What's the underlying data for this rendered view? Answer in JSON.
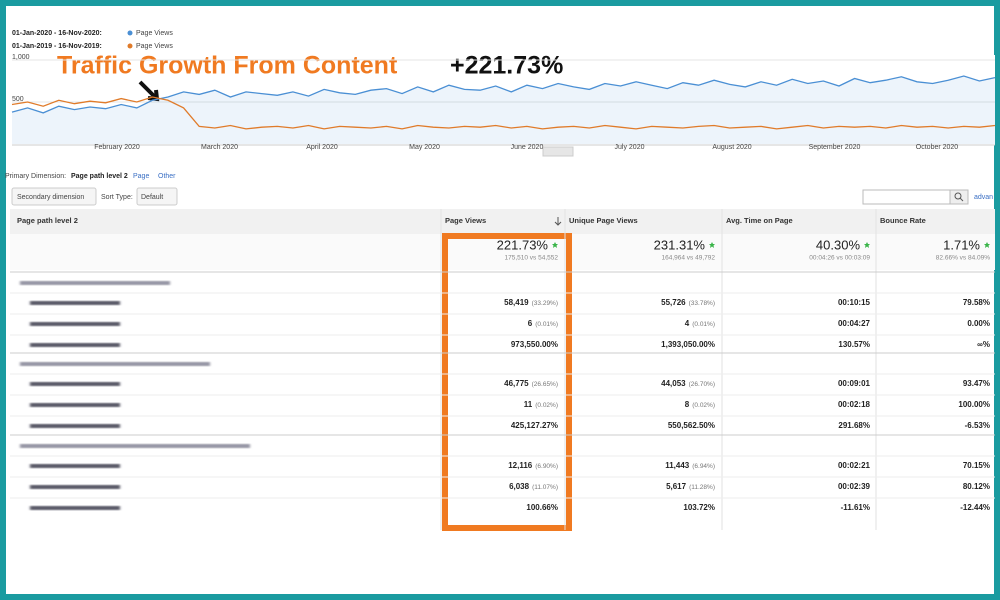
{
  "annotation": {
    "text": "Traffic Growth From Content",
    "value": "+221.73%"
  },
  "chart": {
    "type": "line",
    "series": [
      {
        "period": "01-Jan-2020 - 16-Nov-2020:",
        "name": "Page Views",
        "color": "#4a8fd4",
        "values": [
          380,
          430,
          370,
          450,
          410,
          440,
          420,
          470,
          430,
          520,
          560,
          620,
          590,
          640,
          560,
          620,
          600,
          580,
          620,
          570,
          650,
          610,
          590,
          640,
          660,
          600,
          680,
          620,
          700,
          650,
          640,
          690,
          620,
          700,
          660,
          720,
          680,
          650,
          720,
          690,
          740,
          700,
          660,
          730,
          700,
          760,
          710,
          680,
          740,
          700,
          770,
          720,
          750,
          690,
          780,
          730,
          760,
          800,
          740,
          720,
          760,
          810,
          750,
          790
        ]
      },
      {
        "period": "01-Jan-2019 - 16-Nov-2019:",
        "name": "Page Views",
        "color": "#e07b2a",
        "values": [
          470,
          500,
          450,
          520,
          480,
          510,
          490,
          540,
          500,
          560,
          520,
          430,
          210,
          190,
          220,
          180,
          200,
          210,
          190,
          220,
          180,
          210,
          200,
          190,
          210,
          180,
          220,
          200,
          190,
          210,
          200,
          220,
          190,
          210,
          180,
          200,
          210,
          190,
          220,
          200,
          180,
          210,
          200,
          190,
          210,
          220,
          190,
          200,
          210,
          180,
          200,
          220,
          190,
          210,
          200,
          210,
          190,
          220,
          200,
          210,
          190,
          210,
          200,
          220
        ]
      }
    ],
    "ylim": [
      0,
      1000
    ],
    "yticks": [
      {
        "value": 1000,
        "label": "1,000"
      },
      500
    ],
    "x_labels": [
      "February 2020",
      "March 2020",
      "April 2020",
      "May 2020",
      "June 2020",
      "July 2020",
      "August 2020",
      "September 2020",
      "October 2020"
    ]
  },
  "dimension_bar": {
    "label": "Primary Dimension:",
    "selected": "Page path level 2",
    "options": [
      "Page",
      "Other"
    ]
  },
  "toolbar": {
    "secondary": "Secondary dimension",
    "sort_label": "Sort Type:",
    "sort_value": "Default",
    "advanced": "advan"
  },
  "table": {
    "headers": [
      "Page path level 2",
      "Page Views",
      "Unique Page Views",
      "Avg. Time on Page",
      "Bounce Rate"
    ],
    "totals": [
      {
        "value": "221.73%",
        "sub": "175,510 vs 54,552"
      },
      {
        "value": "231.31%",
        "sub": "164,964 vs 49,792"
      },
      {
        "value": "40.30%",
        "sub": "00:04:26 vs 00:03:09"
      },
      {
        "value": "1.71%",
        "sub": "82.66% vs 84.09%"
      }
    ],
    "groups": [
      {
        "rows": [
          [
            [
              "58,419",
              "(33.29%)"
            ],
            [
              "55,726",
              "(33.78%)"
            ],
            [
              "00:10:15"
            ],
            [
              "79.58%"
            ]
          ],
          [
            [
              "6",
              "(0.01%)"
            ],
            [
              "4",
              "(0.01%)"
            ],
            [
              "00:04:27"
            ],
            [
              "0.00%"
            ]
          ],
          [
            [
              "973,550.00%"
            ],
            [
              "1,393,050.00%"
            ],
            [
              "130.57%"
            ],
            [
              "∞%"
            ]
          ]
        ]
      },
      {
        "rows": [
          [
            [
              "46,775",
              "(26.65%)"
            ],
            [
              "44,053",
              "(26.70%)"
            ],
            [
              "00:09:01"
            ],
            [
              "93.47%"
            ]
          ],
          [
            [
              "11",
              "(0.02%)"
            ],
            [
              "8",
              "(0.02%)"
            ],
            [
              "00:02:18"
            ],
            [
              "100.00%"
            ]
          ],
          [
            [
              "425,127.27%"
            ],
            [
              "550,562.50%"
            ],
            [
              "291.68%"
            ],
            [
              "-6.53%"
            ]
          ]
        ]
      },
      {
        "rows": [
          [
            [
              "12,116",
              "(6.90%)"
            ],
            [
              "11,443",
              "(6.94%)"
            ],
            [
              "00:02:21"
            ],
            [
              "70.15%"
            ]
          ],
          [
            [
              "6,038",
              "(11.07%)"
            ],
            [
              "5,617",
              "(11.28%)"
            ],
            [
              "00:02:39"
            ],
            [
              "80.12%"
            ]
          ],
          [
            [
              "100.66%"
            ],
            [
              "103.72%"
            ],
            [
              "-11.61%"
            ],
            [
              "-12.44%"
            ]
          ]
        ]
      }
    ]
  }
}
